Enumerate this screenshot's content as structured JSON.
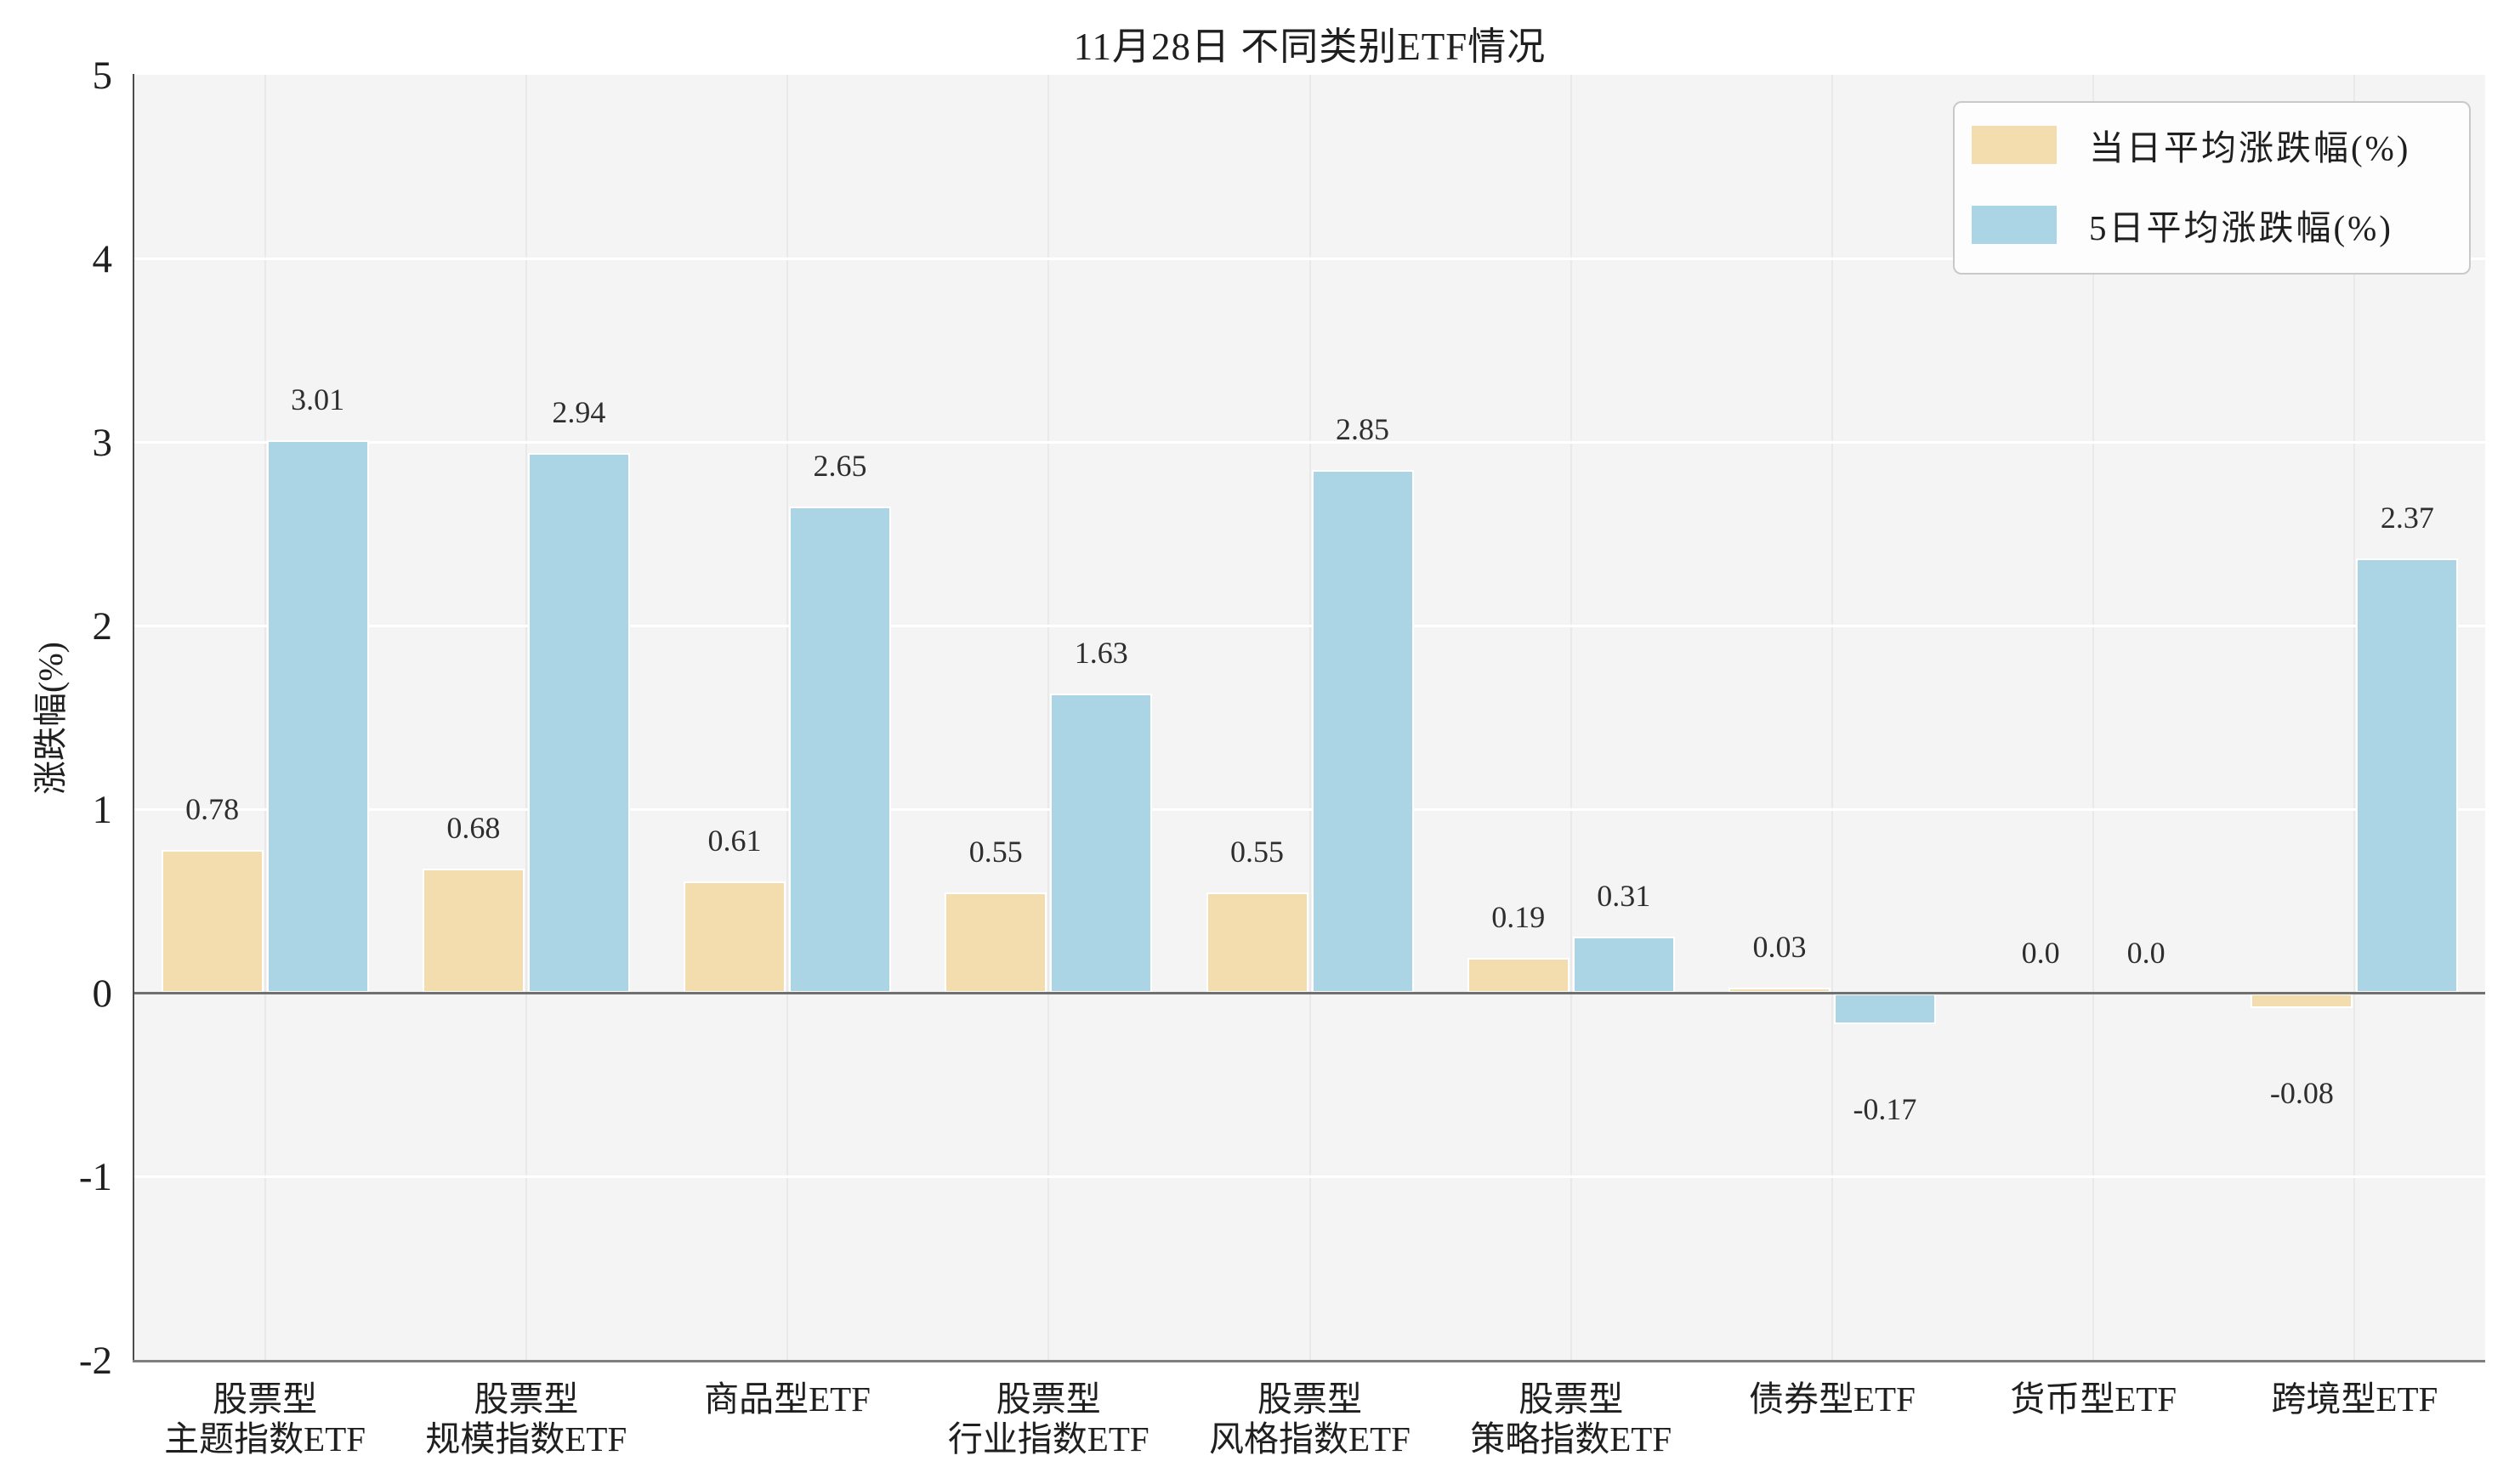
{
  "title": "11月28日 不同类别ETF情况",
  "ylabel": "涨跌幅(%)",
  "chart_data": {
    "type": "bar",
    "title": "11月28日 不同类别ETF情况",
    "ylabel": "涨跌幅(%)",
    "categories": [
      "股票型\n主题指数ETF",
      "股票型\n规模指数ETF",
      "商品型ETF",
      "股票型\n行业指数ETF",
      "股票型\n风格指数ETF",
      "股票型\n策略指数ETF",
      "债券型ETF",
      "货币型ETF",
      "跨境型ETF"
    ],
    "series": [
      {
        "name": "当日平均涨跌幅(%)",
        "color": "#f3dcae",
        "values": [
          0.78,
          0.68,
          0.61,
          0.55,
          0.55,
          0.19,
          0.03,
          0.0,
          -0.08
        ],
        "labels": [
          "0.78",
          "0.68",
          "0.61",
          "0.55",
          "0.55",
          "0.19",
          "0.03",
          "0.0",
          "-0.08"
        ]
      },
      {
        "name": "5日平均涨跌幅(%)",
        "color": "#abd5e4",
        "values": [
          3.01,
          2.94,
          2.65,
          1.63,
          2.85,
          0.31,
          -0.17,
          0.0,
          2.37
        ],
        "labels": [
          "3.01",
          "2.94",
          "2.65",
          "1.63",
          "2.85",
          "0.31",
          "-0.17",
          "0.0",
          "2.37"
        ]
      }
    ],
    "ylim": [
      -2,
      5
    ],
    "yticks": [
      5,
      4,
      3,
      2,
      1,
      0,
      -1,
      -2
    ],
    "grid": true,
    "legend_position": "upper right",
    "plot_bg": "#f4f4f4"
  }
}
